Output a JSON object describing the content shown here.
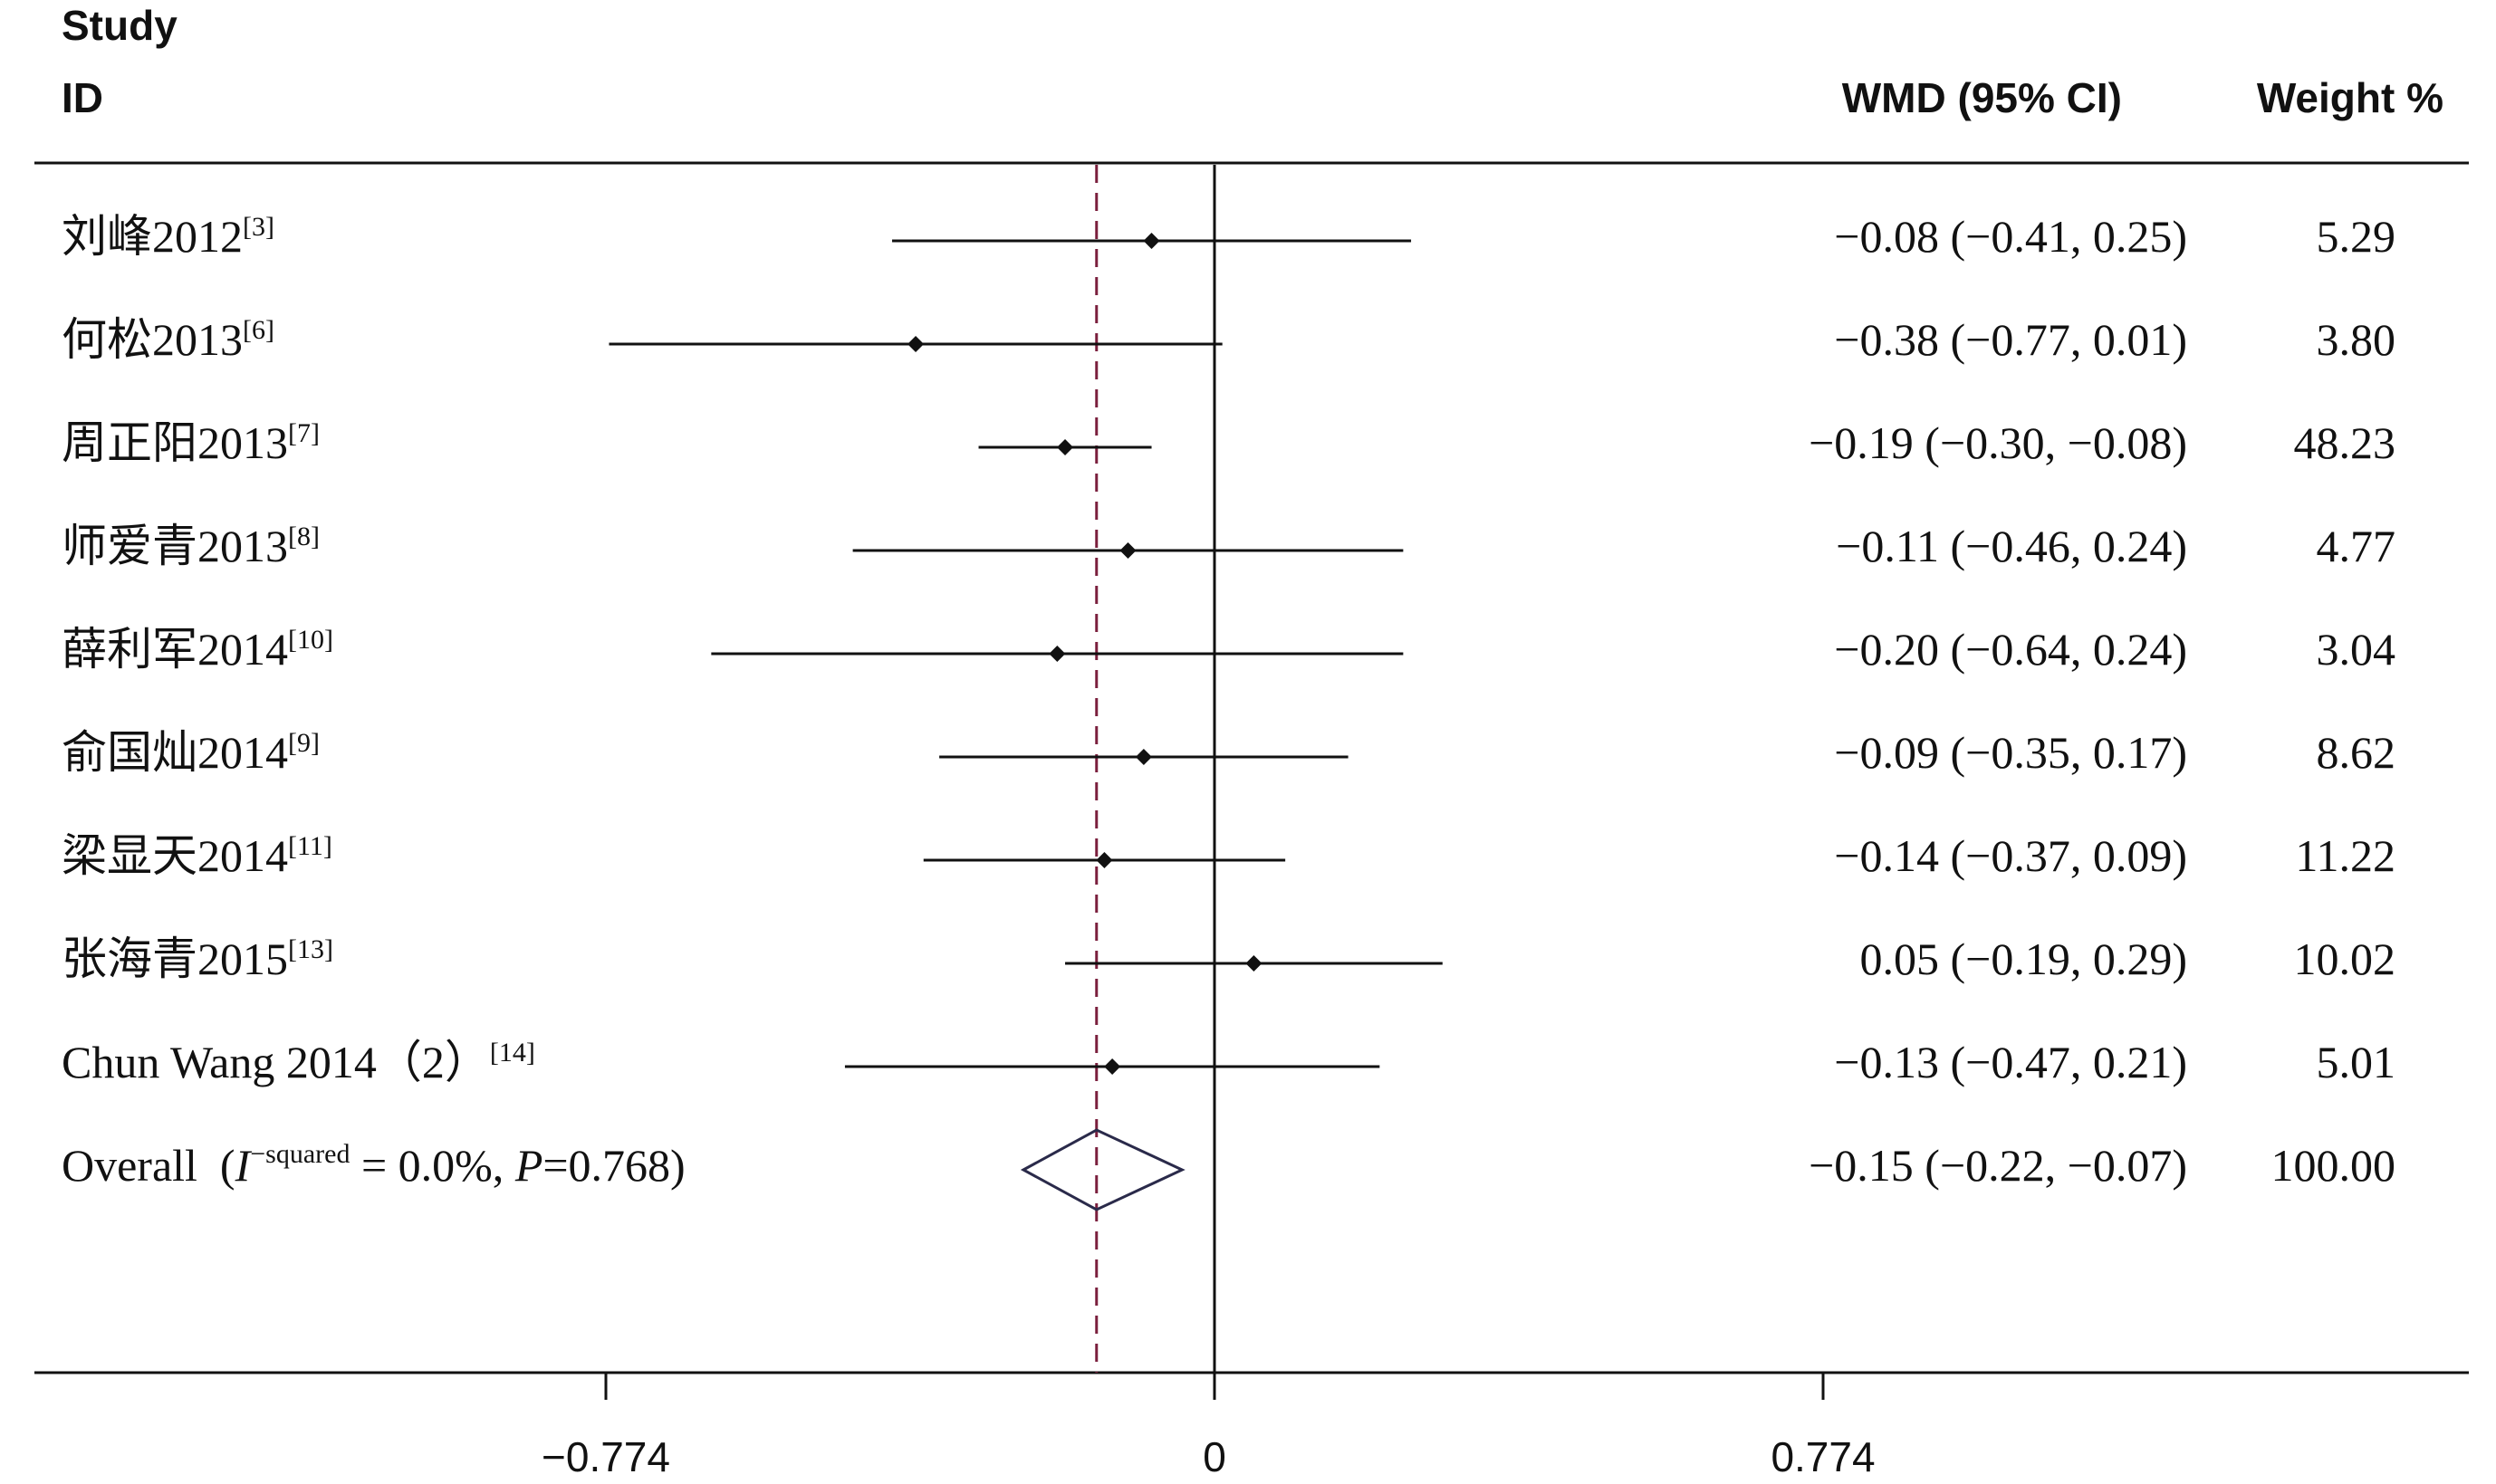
{
  "chart_data": {
    "type": "forest",
    "columns": {
      "study_line1": "Study",
      "study_line2": "ID",
      "estimate": "WMD (95% CI)",
      "weight": "Weight %"
    },
    "studies": [
      {
        "name": "刘峰2012",
        "ref": "[3]",
        "est": -0.08,
        "lo": -0.41,
        "hi": 0.25,
        "ci_text": "−0.08 (−0.41, 0.25)",
        "weight": "5.29"
      },
      {
        "name": "何松2013",
        "ref": "[6]",
        "est": -0.38,
        "lo": -0.77,
        "hi": 0.01,
        "ci_text": "−0.38 (−0.77, 0.01)",
        "weight": "3.80"
      },
      {
        "name": "周正阳2013",
        "ref": "[7]",
        "est": -0.19,
        "lo": -0.3,
        "hi": -0.08,
        "ci_text": "−0.19 (−0.30, −0.08)",
        "weight": "48.23"
      },
      {
        "name": "师爱青2013",
        "ref": "[8]",
        "est": -0.11,
        "lo": -0.46,
        "hi": 0.24,
        "ci_text": "−0.11 (−0.46, 0.24)",
        "weight": "4.77"
      },
      {
        "name": "薛利军2014",
        "ref": "[10]",
        "est": -0.2,
        "lo": -0.64,
        "hi": 0.24,
        "ci_text": "−0.20 (−0.64, 0.24)",
        "weight": "3.04"
      },
      {
        "name": "俞国灿2014",
        "ref": "[9]",
        "est": -0.09,
        "lo": -0.35,
        "hi": 0.17,
        "ci_text": "−0.09 (−0.35, 0.17)",
        "weight": "8.62"
      },
      {
        "name": "梁显天2014",
        "ref": "[11]",
        "est": -0.14,
        "lo": -0.37,
        "hi": 0.09,
        "ci_text": "−0.14 (−0.37, 0.09)",
        "weight": "11.22"
      },
      {
        "name": "张海青2015",
        "ref": "[13]",
        "est": 0.05,
        "lo": -0.19,
        "hi": 0.29,
        "ci_text": "0.05 (−0.19, 0.29)",
        "weight": "10.02"
      },
      {
        "name": "Chun Wang 2014（2）",
        "ref": "[14]",
        "est": -0.13,
        "lo": -0.47,
        "hi": 0.21,
        "ci_text": "−0.13 (−0.47, 0.21)",
        "weight": "5.01"
      }
    ],
    "overall": {
      "label_prefix": "Overall  (",
      "i_symbol": "I",
      "i_sup": "−squared",
      "label_mid": " = 0.0%, ",
      "p_symbol": "P",
      "label_end": "=0.768)",
      "est": -0.15,
      "lo": -0.22,
      "hi": -0.07,
      "ci_text": "−0.15 (−0.22, −0.07)",
      "weight": "100.00"
    },
    "x_axis": {
      "ticks": [
        -0.774,
        0,
        0.774
      ],
      "tick_labels": [
        "−0.774",
        "0",
        "0.774"
      ],
      "range": [
        -0.774,
        0.774
      ]
    },
    "null_line": 0,
    "overall_line_color": "#7a1f3d",
    "diamond_color": "#2a2a4a",
    "mark_color": "#111111"
  }
}
